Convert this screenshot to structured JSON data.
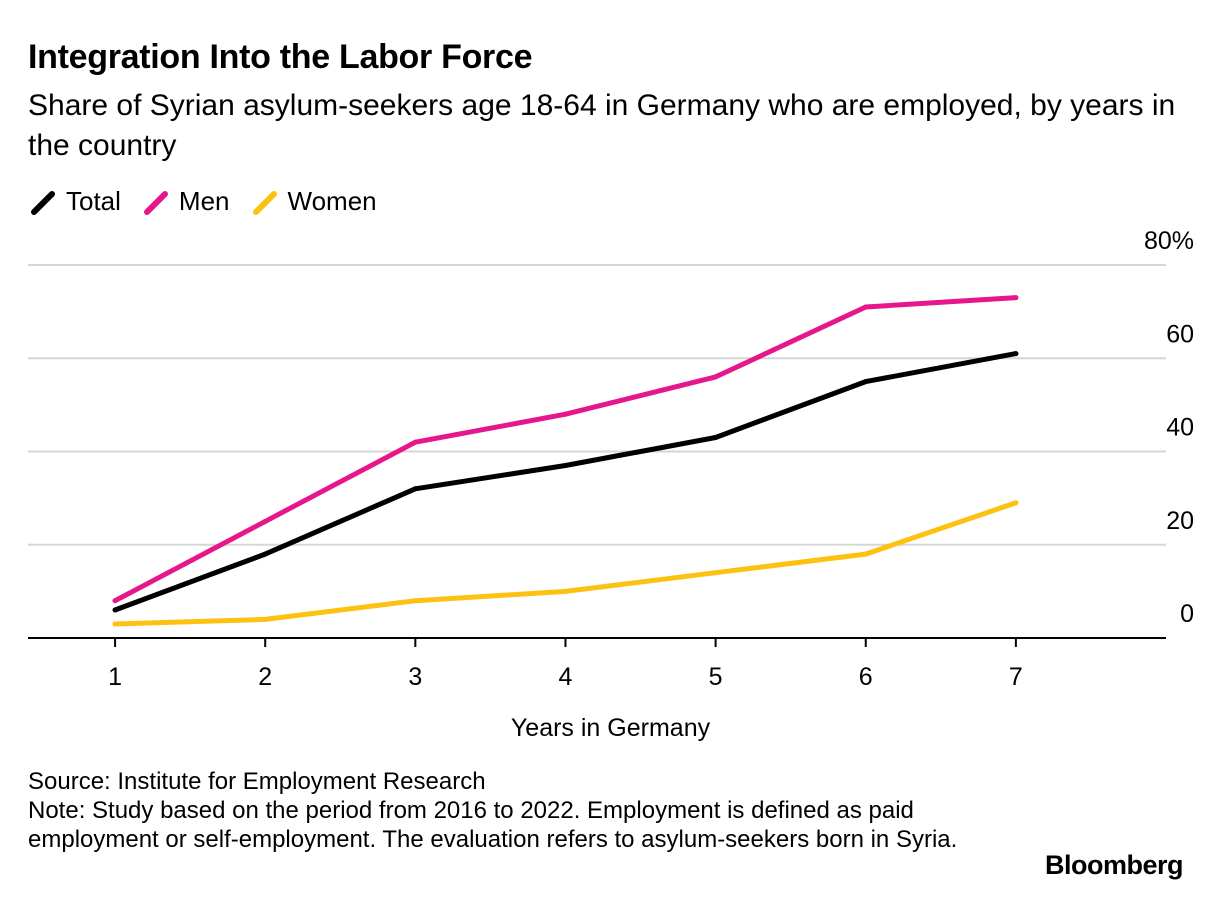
{
  "title": "Integration Into the Labor Force",
  "subtitle": "Share of Syrian asylum-seekers age 18-64 in Germany who are employed, by years in the country",
  "legend": [
    {
      "label": "Total",
      "color": "#000000"
    },
    {
      "label": "Men",
      "color": "#e6178c"
    },
    {
      "label": "Women",
      "color": "#fcc111"
    }
  ],
  "footer": {
    "source": "Source: Institute for Employment Research",
    "note": "Note: Study based on the period from 2016 to 2022. Employment is defined as paid employment or self-employment. The evaluation refers to asylum-seekers born in Syria."
  },
  "brand": "Bloomberg",
  "chart_data": {
    "type": "line",
    "title": "Integration Into the Labor Force",
    "subtitle": "Share of Syrian asylum-seekers age 18-64 in Germany who are employed, by years in the country",
    "xlabel": "Years in Germany",
    "ylabel": "",
    "x": [
      1,
      2,
      3,
      4,
      5,
      6,
      7
    ],
    "x_tick_labels": [
      "1",
      "2",
      "3",
      "4",
      "5",
      "6",
      "7"
    ],
    "y_tick_labels": [
      "0",
      "20",
      "40",
      "60",
      "80%"
    ],
    "y_ticks": [
      0,
      20,
      40,
      60,
      80
    ],
    "ylim": [
      0,
      80
    ],
    "xlim": [
      0.42,
      8
    ],
    "grid": true,
    "legend_position": "top-left",
    "y_axis_side": "right",
    "series": [
      {
        "name": "Total",
        "color": "#000000",
        "values": [
          6,
          18,
          32,
          37,
          43,
          55,
          61
        ]
      },
      {
        "name": "Men",
        "color": "#e6178c",
        "values": [
          8,
          25,
          42,
          48,
          56,
          71,
          73
        ]
      },
      {
        "name": "Women",
        "color": "#fcc111",
        "values": [
          3,
          4,
          8,
          10,
          14,
          18,
          29
        ]
      }
    ]
  }
}
